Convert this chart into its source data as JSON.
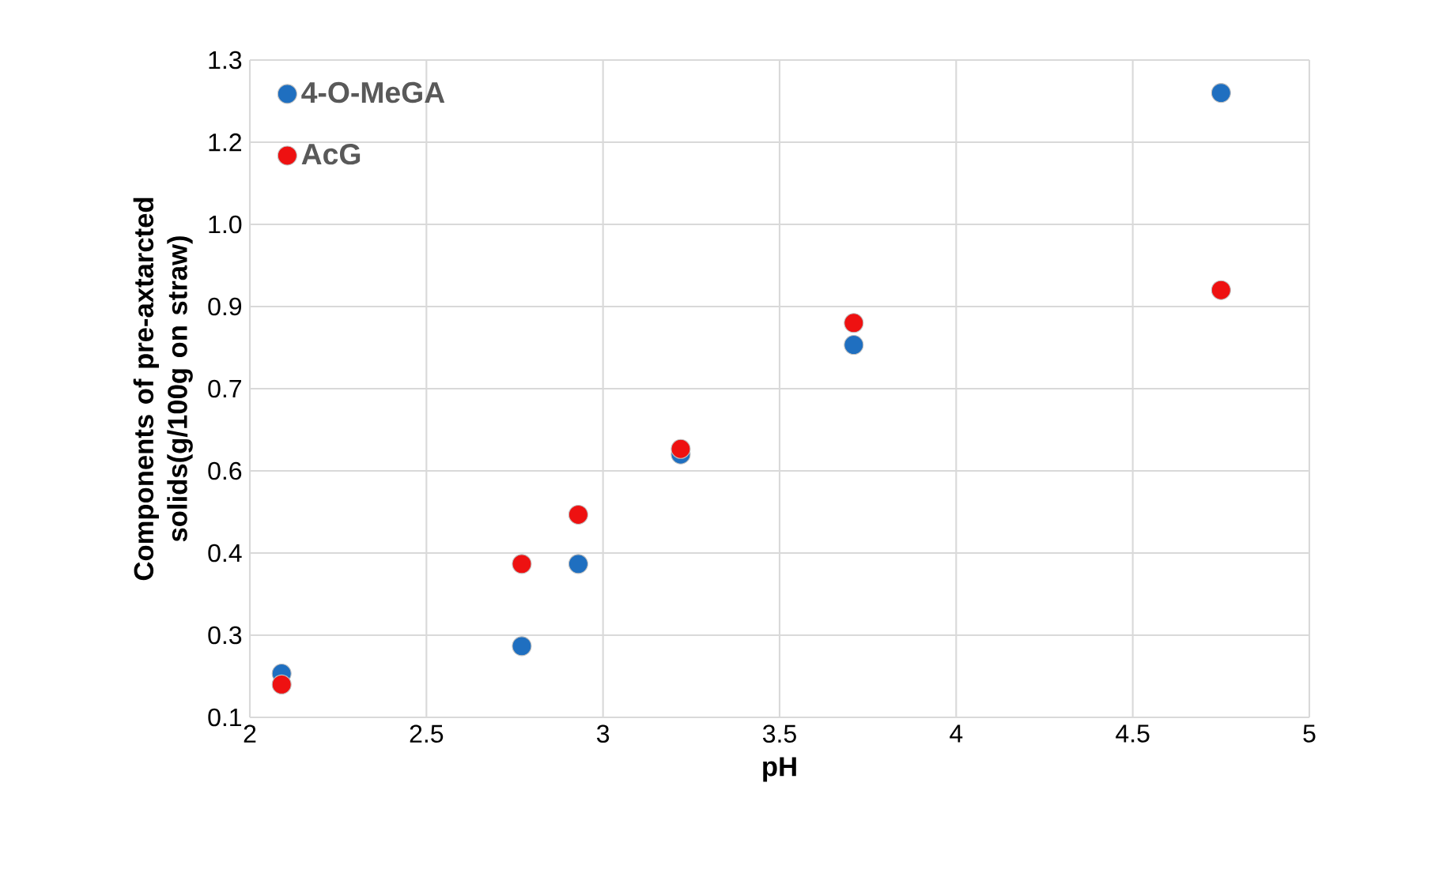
{
  "chart_data": {
    "type": "scatter",
    "xlabel": "pH",
    "ylabel": "Components of pre-axtarcted solids(g/100g on straw)",
    "x": [
      2.09,
      2.77,
      2.93,
      3.22,
      3.71,
      4.75
    ],
    "series": [
      {
        "name": "4-O-MeGA",
        "color": "#1f6fc0",
        "values": [
          0.18,
          0.23,
          0.38,
          0.58,
          0.78,
          1.24
        ]
      },
      {
        "name": "AcG",
        "color": "#ee1111",
        "values": [
          0.16,
          0.38,
          0.47,
          0.59,
          0.82,
          0.88
        ]
      }
    ],
    "xlim": [
      2,
      5
    ],
    "xticks": [
      2,
      2.5,
      3,
      3.5,
      4,
      4.5,
      5
    ],
    "ylim": [
      0.1,
      1.3
    ],
    "yticks": [
      {
        "value": 0.1,
        "label": "0.1"
      },
      {
        "value": 0.25,
        "label": "0.3"
      },
      {
        "value": 0.4,
        "label": "0.4"
      },
      {
        "value": 0.55,
        "label": "0.6"
      },
      {
        "value": 0.7,
        "label": "0.7"
      },
      {
        "value": 0.85,
        "label": "0.9"
      },
      {
        "value": 1.0,
        "label": "1.0"
      },
      {
        "value": 1.15,
        "label": "1.2"
      },
      {
        "value": 1.3,
        "label": "1.3"
      }
    ],
    "grid": true,
    "legend": "top left",
    "marker": "circle"
  }
}
